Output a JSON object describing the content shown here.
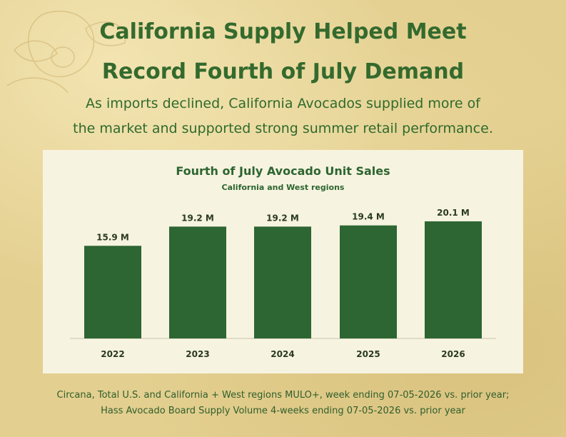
{
  "headline": {
    "line1": "California Supply Helped Meet",
    "line2": "Record Fourth of July Demand"
  },
  "subheadline": {
    "line1": "As imports declined, California Avocados supplied more of",
    "line2": "the market and supported strong summer retail performance."
  },
  "colors": {
    "background": "#e3cf8f",
    "panel": "#f6f3e0",
    "accent_green": "#346a2e",
    "bar_green": "#2d6632",
    "text_dark": "#2a3a22"
  },
  "decoration": "avocado-illustration",
  "chart_data": {
    "type": "bar",
    "title": "Fourth of July Avocado Unit Sales",
    "subtitle": "California and West regions",
    "categories": [
      "2022",
      "2023",
      "2024",
      "2025",
      "2026"
    ],
    "values": [
      15.9,
      19.2,
      19.2,
      19.4,
      20.1
    ],
    "data_labels": [
      "15.9 M",
      "19.2 M",
      "19.2 M",
      "19.4 M",
      "20.1 M"
    ],
    "unit": "M",
    "ylim": [
      0,
      25
    ],
    "grid": false,
    "legend": "none"
  },
  "source": {
    "line1": "Circana, Total U.S. and California + West regions MULO+, week ending 07-05-2026 vs. prior year;",
    "line2": "Hass Avocado Board Supply Volume 4-weeks ending 07-05-2026 vs. prior year"
  }
}
